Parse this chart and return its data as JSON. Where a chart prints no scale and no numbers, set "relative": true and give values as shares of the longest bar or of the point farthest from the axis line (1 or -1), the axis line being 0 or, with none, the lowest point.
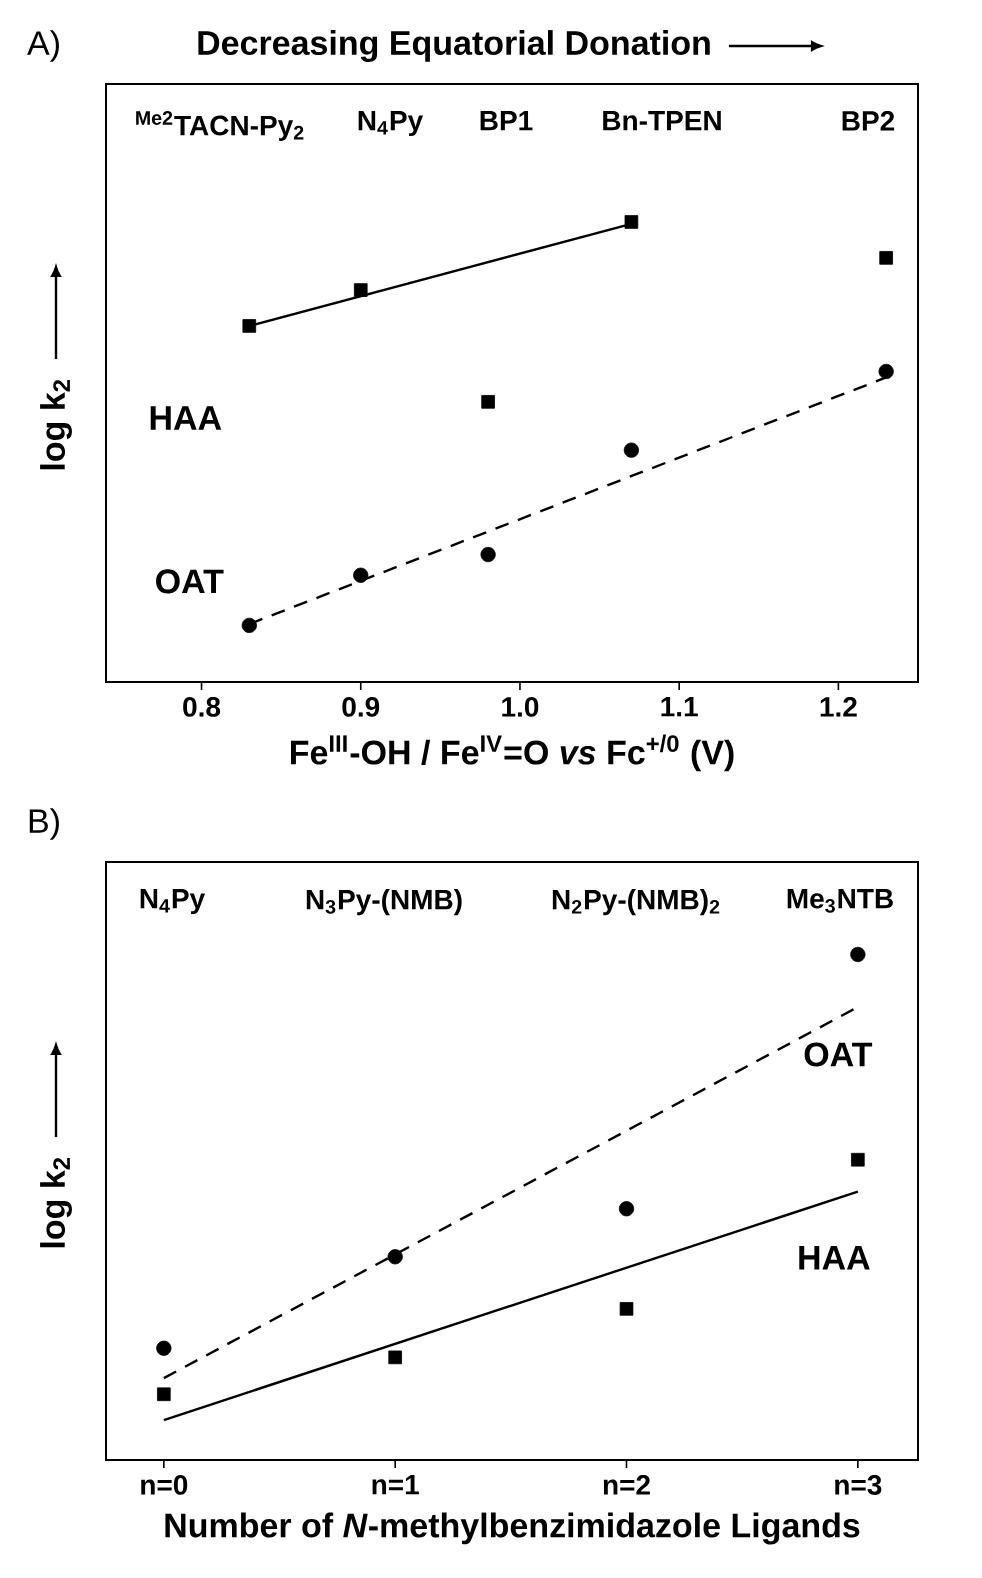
{
  "chart_data": [
    {
      "type": "scatter",
      "title": "Decreasing Equatorial Donation",
      "xlabel": "Fe$^{III}$-OH / Fe$^{IV}$=O *vs* Fc$^{+/0}$ (V)",
      "ylabel": "log k$_{2}$",
      "relative": true,
      "annotations": [
        "A)",
        "$^{Me2}$TACN-Py$_{2}$",
        "N$_{4}$Py",
        "BP1",
        "Bn-TPEN",
        "BP2"
      ],
      "xlim": [
        0.74,
        1.25
      ],
      "xticks": [
        {
          "value": 0.8,
          "label": "0.8"
        },
        {
          "value": 0.9,
          "label": "0.9"
        },
        {
          "value": 1.0,
          "label": "1.0"
        },
        {
          "value": 1.1,
          "label": "1.1"
        },
        {
          "value": 1.2,
          "label": "1.2"
        }
      ],
      "series": [
        {
          "name": "HAA",
          "type": "scatter",
          "marker": "square",
          "color": "#000000",
          "x": [
            0.83,
            0.9,
            0.98,
            1.07,
            1.23
          ],
          "values": [
            0.774,
            0.852,
            0.609,
            1.0,
            0.922
          ]
        },
        {
          "name": "OAT",
          "type": "scatter",
          "marker": "circle",
          "color": "#000000",
          "x": [
            0.83,
            0.9,
            0.98,
            1.07,
            1.23
          ],
          "values": [
            0.123,
            0.232,
            0.277,
            0.504,
            0.675
          ]
        },
        {
          "type": "line",
          "line_style": "solid",
          "color": "#000000",
          "x": [
            0.83,
            1.07
          ],
          "values": [
            0.774,
            0.996
          ]
        },
        {
          "type": "line",
          "line_style": "dashed",
          "color": "#000000",
          "x": [
            0.83,
            1.23
          ],
          "values": [
            0.126,
            0.662
          ]
        }
      ]
    },
    {
      "type": "scatter",
      "xlabel": "Number of *N*-methylbenzimidazole Ligands",
      "ylabel": "log k$_{2}$",
      "relative": true,
      "annotations": [
        "B)",
        "N$_{4}$Py",
        "N$_{3}$Py-(NMB)",
        "N$_{2}$Py-(NMB)$_{2}$",
        "Me$_{3}$NTB"
      ],
      "xlim": [
        -0.25,
        3.26
      ],
      "xticks": [
        {
          "value": 0,
          "label": "n=0"
        },
        {
          "value": 1,
          "label": "n=1"
        },
        {
          "value": 2,
          "label": "n=2"
        },
        {
          "value": 3,
          "label": "n=3"
        }
      ],
      "series": [
        {
          "name": "HAA",
          "type": "scatter",
          "marker": "square",
          "color": "#000000",
          "x": [
            0,
            1,
            2,
            3
          ],
          "values": [
            0.13,
            0.203,
            0.299,
            0.594
          ]
        },
        {
          "name": "OAT",
          "type": "scatter",
          "marker": "circle",
          "color": "#000000",
          "x": [
            0,
            1,
            2,
            3
          ],
          "values": [
            0.221,
            0.402,
            0.497,
            1.0
          ]
        },
        {
          "type": "line",
          "line_style": "solid",
          "color": "#000000",
          "x": [
            0,
            3
          ],
          "values": [
            0.079,
            0.531
          ]
        },
        {
          "type": "line",
          "line_style": "dashed",
          "color": "#000000",
          "x": [
            0,
            3
          ],
          "values": [
            0.162,
            0.896
          ]
        }
      ]
    }
  ]
}
